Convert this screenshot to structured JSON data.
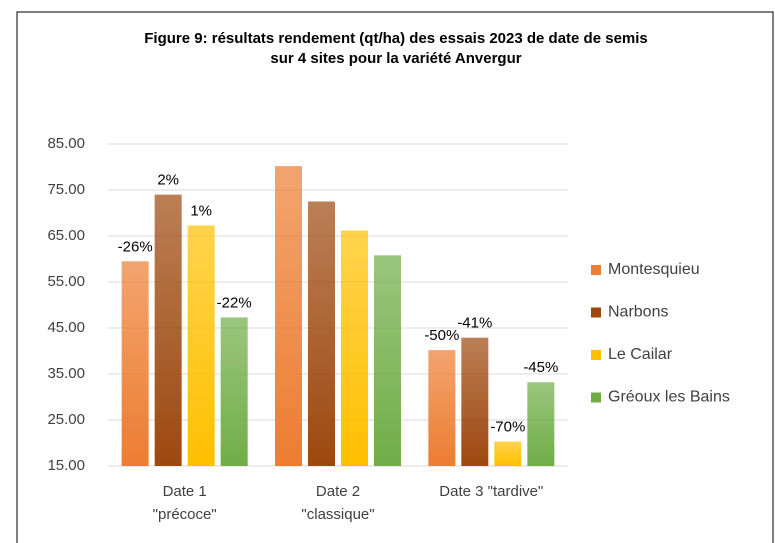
{
  "chart_data": {
    "type": "bar",
    "title": [
      "Figure 9: résultats rendement (qt/ha) des essais 2023 de date de semis",
      "sur 4 sites pour la variété Anvergur"
    ],
    "categories": [
      [
        "Date 1",
        "\"précoce\""
      ],
      [
        "Date 2",
        "\"classique\""
      ],
      [
        "Date 3 \"tardive\""
      ]
    ],
    "series": [
      {
        "name": "Montesquieu",
        "color": "#ed7d31",
        "values": [
          59.5,
          80.2,
          40.2
        ],
        "labels": [
          "-26%",
          null,
          "-50%"
        ]
      },
      {
        "name": "Narbons",
        "color": "#9e480e",
        "values": [
          74.0,
          72.5,
          42.9
        ],
        "labels": [
          "2%",
          null,
          "-41%"
        ]
      },
      {
        "name": "Le Cailar",
        "color": "#ffc000",
        "values": [
          67.3,
          66.2,
          20.3
        ],
        "labels": [
          "1%",
          null,
          "-70%"
        ]
      },
      {
        "name": "Gréoux les Bains",
        "color": "#70ad47",
        "values": [
          47.3,
          60.8,
          33.2
        ],
        "labels": [
          "-22%",
          null,
          "-45%"
        ]
      }
    ],
    "ylim": [
      15,
      85
    ],
    "yticks": [
      {
        "value": 15,
        "label": "15.00"
      },
      {
        "value": 25,
        "label": "25.00"
      },
      {
        "value": 35,
        "label": "35.00"
      },
      {
        "value": 45,
        "label": "45.00"
      },
      {
        "value": 55,
        "label": "55.00"
      },
      {
        "value": 65,
        "label": "65.00"
      },
      {
        "value": 75,
        "label": "75.00"
      },
      {
        "value": 85,
        "label": "85.00"
      }
    ],
    "grid": true
  }
}
